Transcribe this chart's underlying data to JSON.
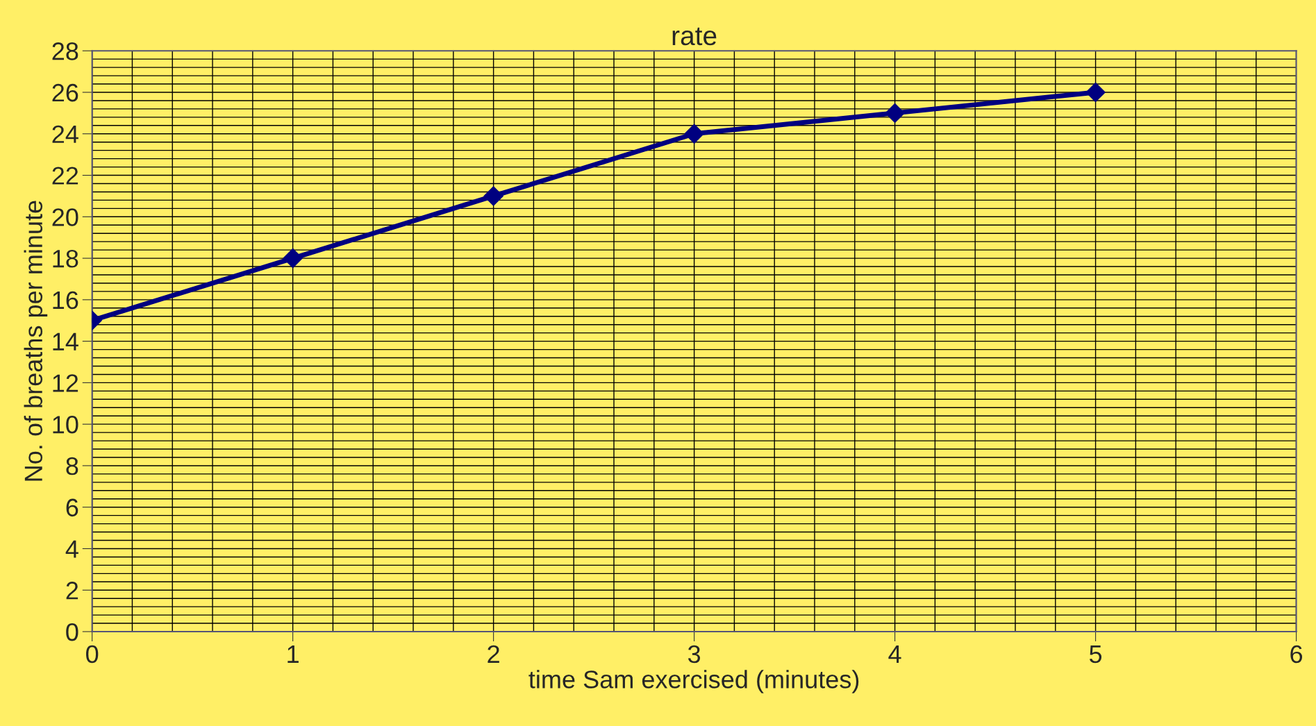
{
  "chart_data": {
    "type": "line",
    "title": "rate",
    "xlabel": "time Sam exercised (minutes)",
    "ylabel": "No. of breaths per minute",
    "x": [
      0,
      1,
      2,
      3,
      4,
      5
    ],
    "series": [
      {
        "color": "#000080",
        "values": [
          15,
          18,
          21,
          24,
          25,
          26
        ]
      }
    ],
    "xlim": [
      0,
      6
    ],
    "xticks": [
      0,
      1,
      2,
      3,
      4,
      5,
      6
    ],
    "ylim": [
      0,
      28
    ],
    "yticks": [
      0,
      2,
      4,
      6,
      8,
      10,
      12,
      14,
      16,
      18,
      20,
      22,
      24,
      26,
      28
    ],
    "grid": true,
    "marker": "diamond",
    "line_style": "solid",
    "legend": false
  }
}
